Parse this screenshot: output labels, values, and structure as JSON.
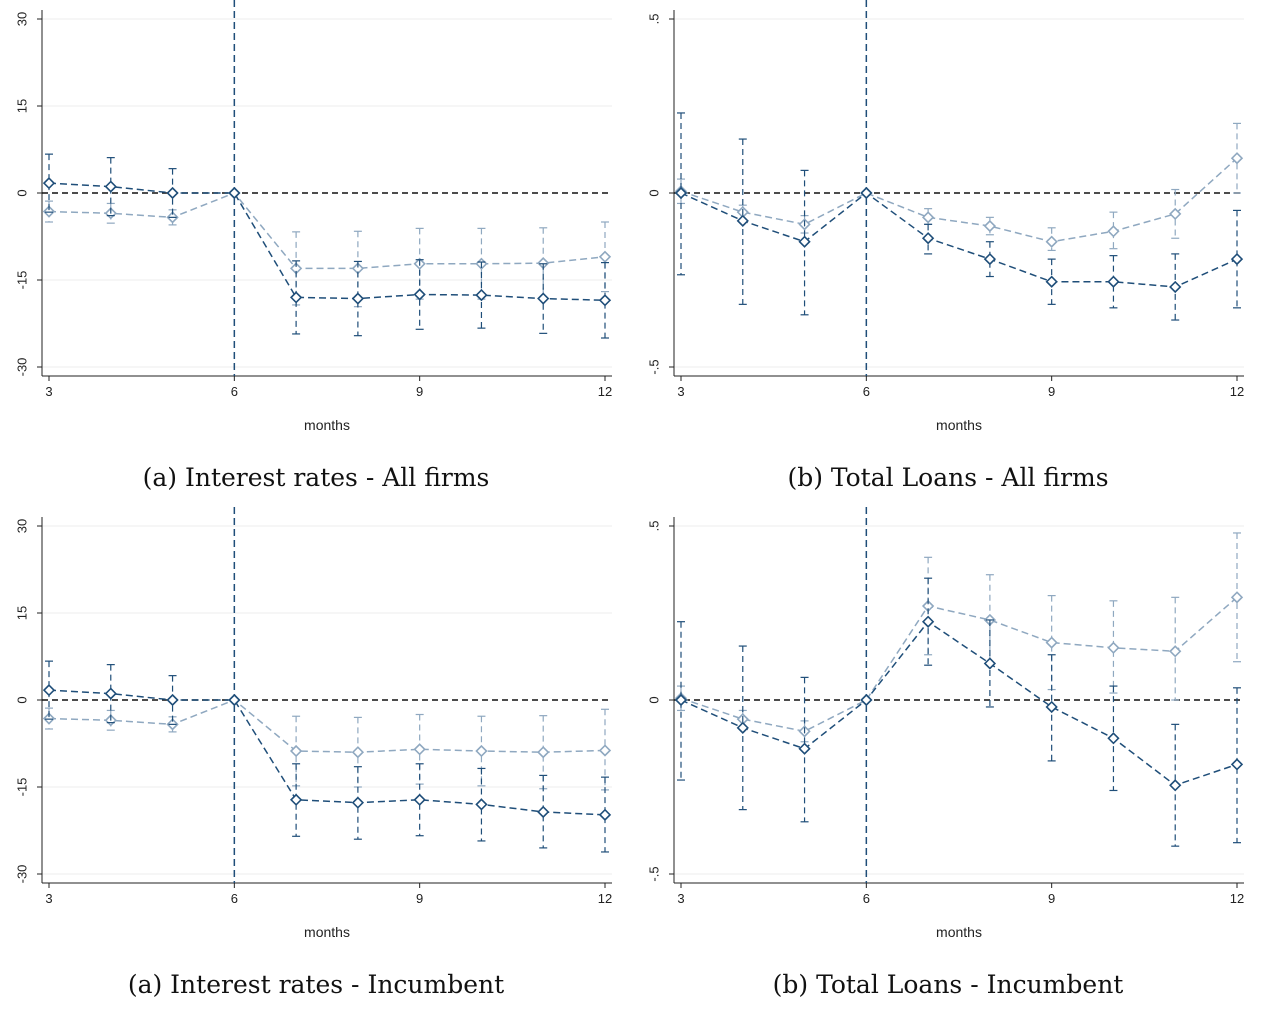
{
  "colors": {
    "dark": "#1f4e79",
    "light": "#8fa8c0",
    "grid": "#ececec",
    "zero_line": "#111111",
    "event_line": "#1f4e79"
  },
  "chart_data": [
    {
      "type": "line",
      "caption": "(a) Interest rates - All firms",
      "xlabel": "months",
      "ylabel": "",
      "xlim": [
        3,
        12
      ],
      "ylim": [
        -30,
        30
      ],
      "yticks": [
        -30,
        -15,
        0,
        15,
        30
      ],
      "ytick_labels": [
        "-30",
        "-15",
        "0",
        "15",
        "30"
      ],
      "xticks": [
        3,
        6,
        9,
        12
      ],
      "event_x": 6,
      "grid": true,
      "x": [
        3,
        4,
        5,
        6,
        7,
        8,
        9,
        10,
        11,
        12
      ],
      "series": [
        {
          "color": "dark",
          "values": [
            1.7,
            1.1,
            0,
            0,
            -18,
            -18.2,
            -17.5,
            -17.6,
            -18.2,
            -18.5
          ],
          "ci_low": [
            -3.3,
            -3.9,
            -4.2,
            0,
            -24.3,
            -24.6,
            -23.5,
            -23.3,
            -24.2,
            -25
          ],
          "ci_high": [
            6.7,
            6.1,
            4.2,
            0,
            -11.7,
            -11.8,
            -11.5,
            -11.9,
            -12.2,
            -12
          ]
        },
        {
          "color": "light",
          "values": [
            -3.2,
            -3.5,
            -4.2,
            0,
            -13,
            -13,
            -12.2,
            -12.2,
            -12.1,
            -11
          ],
          "ci_low": [
            -5,
            -5.2,
            -5.5,
            0,
            -19.3,
            -19.6,
            -18.3,
            -18.3,
            -18.3,
            -17
          ],
          "ci_high": [
            -1.4,
            -1.8,
            -2.9,
            0,
            -6.7,
            -6.6,
            -6.1,
            -6.1,
            -6,
            -5
          ]
        }
      ]
    },
    {
      "type": "line",
      "caption": "(b) Total Loans - All firms",
      "xlabel": "months",
      "ylabel": "",
      "xlim": [
        3,
        12
      ],
      "ylim": [
        -0.5,
        0.5
      ],
      "yticks": [
        -0.5,
        0,
        0.5
      ],
      "ytick_labels": [
        "-.5",
        "0",
        ".5"
      ],
      "xticks": [
        3,
        6,
        9,
        12
      ],
      "event_x": 6,
      "grid": true,
      "x": [
        3,
        4,
        5,
        6,
        7,
        8,
        9,
        10,
        11,
        12
      ],
      "series": [
        {
          "color": "dark",
          "values": [
            0,
            -0.08,
            -0.14,
            0,
            -0.13,
            -0.19,
            -0.255,
            -0.255,
            -0.27,
            -0.19
          ],
          "ci_low": [
            -0.235,
            -0.32,
            -0.35,
            0,
            -0.175,
            -0.24,
            -0.32,
            -0.33,
            -0.365,
            -0.33
          ],
          "ci_high": [
            0.23,
            0.155,
            0.065,
            0,
            -0.09,
            -0.14,
            -0.19,
            -0.18,
            -0.175,
            -0.05
          ]
        },
        {
          "color": "light",
          "values": [
            0.005,
            -0.055,
            -0.09,
            0,
            -0.07,
            -0.095,
            -0.14,
            -0.11,
            -0.06,
            0.1
          ],
          "ci_low": [
            -0.03,
            -0.075,
            -0.115,
            0,
            -0.09,
            -0.12,
            -0.165,
            -0.16,
            -0.13,
            0
          ],
          "ci_high": [
            0.04,
            -0.035,
            -0.065,
            0,
            -0.045,
            -0.07,
            -0.1,
            -0.055,
            0.01,
            0.2
          ]
        }
      ]
    },
    {
      "type": "line",
      "caption": "(a) Interest rates - Incumbent",
      "xlabel": "months",
      "ylabel": "",
      "xlim": [
        3,
        12
      ],
      "ylim": [
        -30,
        30
      ],
      "yticks": [
        -30,
        -15,
        0,
        15,
        30
      ],
      "ytick_labels": [
        "-30",
        "-15",
        "0",
        "15",
        "30"
      ],
      "xticks": [
        3,
        6,
        9,
        12
      ],
      "event_x": 6,
      "grid": true,
      "x": [
        3,
        4,
        5,
        6,
        7,
        8,
        9,
        10,
        11,
        12
      ],
      "series": [
        {
          "color": "dark",
          "values": [
            1.7,
            1.1,
            0,
            0,
            -17.2,
            -17.7,
            -17.2,
            -18,
            -19.3,
            -19.8
          ],
          "ci_low": [
            -3.3,
            -3.9,
            -4.2,
            0,
            -23.5,
            -24,
            -23.4,
            -24.3,
            -25.5,
            -26.2
          ],
          "ci_high": [
            6.7,
            6.1,
            4.2,
            0,
            -11,
            -11.5,
            -11,
            -11.8,
            -13,
            -13.3
          ]
        },
        {
          "color": "light",
          "values": [
            -3.2,
            -3.5,
            -4.2,
            0,
            -8.8,
            -9,
            -8.5,
            -8.8,
            -9,
            -8.7
          ],
          "ci_low": [
            -5,
            -5.2,
            -5.5,
            0,
            -14.8,
            -15,
            -14.5,
            -14.8,
            -15.3,
            -15.5
          ],
          "ci_high": [
            -1.4,
            -1.8,
            -2.9,
            0,
            -2.8,
            -3,
            -2.5,
            -2.8,
            -2.7,
            -1.6
          ]
        }
      ]
    },
    {
      "type": "line",
      "caption": "(b) Total Loans - Incumbent",
      "xlabel": "months",
      "ylabel": "",
      "xlim": [
        3,
        12
      ],
      "ylim": [
        -0.5,
        0.5
      ],
      "yticks": [
        -0.5,
        0,
        0.5
      ],
      "ytick_labels": [
        "-.5",
        "0",
        ".5"
      ],
      "xticks": [
        3,
        6,
        9,
        12
      ],
      "event_x": 6,
      "grid": true,
      "x": [
        3,
        4,
        5,
        6,
        7,
        8,
        9,
        10,
        11,
        12
      ],
      "series": [
        {
          "color": "dark",
          "values": [
            0,
            -0.08,
            -0.14,
            0,
            0.225,
            0.105,
            -0.02,
            -0.11,
            -0.245,
            -0.185
          ],
          "ci_low": [
            -0.23,
            -0.315,
            -0.35,
            0,
            0.1,
            -0.02,
            -0.175,
            -0.26,
            -0.42,
            -0.41
          ],
          "ci_high": [
            0.225,
            0.155,
            0.065,
            0,
            0.35,
            0.23,
            0.13,
            0.04,
            -0.07,
            0.035
          ]
        },
        {
          "color": "light",
          "values": [
            0.005,
            -0.055,
            -0.09,
            0,
            0.27,
            0.23,
            0.165,
            0.15,
            0.14,
            0.295
          ],
          "ci_low": [
            -0.03,
            -0.08,
            -0.12,
            0,
            0.13,
            0.1,
            0.03,
            0.02,
            0,
            0.11
          ],
          "ci_high": [
            0.04,
            -0.03,
            -0.06,
            0,
            0.41,
            0.36,
            0.3,
            0.285,
            0.295,
            0.48
          ]
        }
      ]
    }
  ]
}
